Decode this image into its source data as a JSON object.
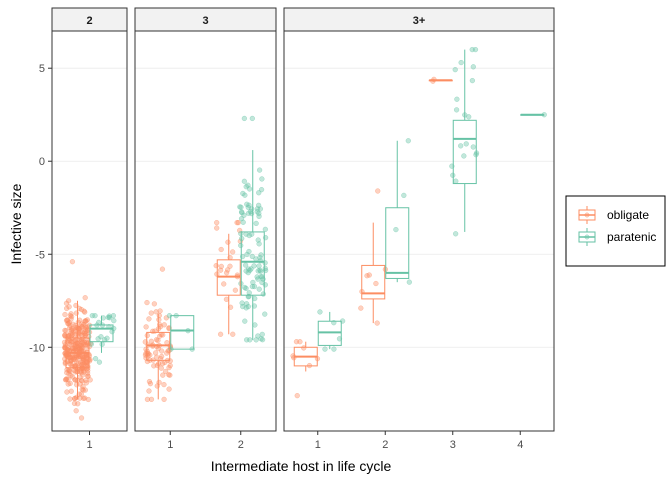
{
  "chart_data": {
    "type": "boxplot-jitter",
    "xlabel": "Intermediate host in life cycle",
    "ylabel": "Infective size",
    "ylim": [
      -14.5,
      7
    ],
    "yticks": [
      -10,
      -5,
      0,
      5
    ],
    "grid": true,
    "legend": {
      "position": "right",
      "entries": [
        {
          "name": "obligate",
          "color": "#FC8D62"
        },
        {
          "name": "paratenic",
          "color": "#66C2A5"
        }
      ]
    },
    "panels": [
      {
        "label": "2",
        "categories": [
          "1"
        ],
        "boxes": [
          {
            "category": "1",
            "group": "obligate",
            "q1": -11.1,
            "median": -10.3,
            "q3": -9.5,
            "lo": -12.8,
            "hi": -7.5,
            "n": 300,
            "pmin": -13.8,
            "pmax": -5.4
          },
          {
            "category": "1",
            "group": "paratenic",
            "q1": -9.7,
            "median": -9.0,
            "q3": -8.8,
            "lo": -10.3,
            "hi": -8.3,
            "n": 22,
            "pmin": -10.8,
            "pmax": -8.3
          }
        ]
      },
      {
        "label": "3",
        "categories": [
          "1",
          "2"
        ],
        "boxes": [
          {
            "category": "1",
            "group": "obligate",
            "q1": -10.7,
            "median": -9.9,
            "q3": -9.2,
            "lo": -12.8,
            "hi": -8.2,
            "n": 80,
            "pmin": -12.8,
            "pmax": -5.8
          },
          {
            "category": "1",
            "group": "paratenic",
            "q1": -10.1,
            "median": -9.1,
            "q3": -8.3,
            "lo": -10.1,
            "hi": -8.3,
            "n": 5,
            "pmin": -10.1,
            "pmax": -8.3
          },
          {
            "category": "2",
            "group": "obligate",
            "q1": -7.2,
            "median": -6.2,
            "q3": -5.3,
            "lo": -9.3,
            "hi": -3.9,
            "n": 25,
            "pmin": -9.3,
            "pmax": -3.3
          },
          {
            "category": "2",
            "group": "paratenic",
            "q1": -7.2,
            "median": -5.4,
            "q3": -3.8,
            "lo": -9.6,
            "hi": 0.6,
            "n": 100,
            "pmin": -9.6,
            "pmax": 2.3
          }
        ]
      },
      {
        "label": "3+",
        "categories": [
          "1",
          "2",
          "3",
          "4"
        ],
        "boxes": [
          {
            "category": "1",
            "group": "obligate",
            "q1": -11.0,
            "median": -10.5,
            "q3": -10.0,
            "lo": -11.3,
            "hi": -9.7,
            "n": 8,
            "pmin": -12.6,
            "pmax": -9.7
          },
          {
            "category": "1",
            "group": "paratenic",
            "q1": -9.9,
            "median": -9.2,
            "q3": -8.6,
            "lo": -10.1,
            "hi": -8.1,
            "n": 6,
            "pmin": -10.1,
            "pmax": -8.1
          },
          {
            "category": "2",
            "group": "obligate",
            "q1": -7.4,
            "median": -7.1,
            "q3": -5.6,
            "lo": -8.7,
            "hi": -3.3,
            "n": 8,
            "pmin": -8.7,
            "pmax": -1.6
          },
          {
            "category": "2",
            "group": "paratenic",
            "q1": -6.3,
            "median": -6.0,
            "q3": -2.5,
            "lo": -6.5,
            "hi": 1.1,
            "n": 4,
            "pmin": -6.5,
            "pmax": 1.1
          },
          {
            "category": "3",
            "group": "obligate",
            "q1": 4.35,
            "median": 4.35,
            "q3": 4.35,
            "lo": 4.35,
            "hi": 4.35,
            "n": 2,
            "pmin": 4.3,
            "pmax": 4.4
          },
          {
            "category": "3",
            "group": "paratenic",
            "q1": -1.2,
            "median": 1.2,
            "q3": 2.2,
            "lo": -3.8,
            "hi": 6.0,
            "n": 20,
            "pmin": -3.9,
            "pmax": 6.0
          },
          {
            "category": "4",
            "group": "paratenic",
            "q1": 2.5,
            "median": 2.5,
            "q3": 2.5,
            "lo": 2.5,
            "hi": 2.5,
            "n": 1,
            "pmin": 2.5,
            "pmax": 2.5
          }
        ]
      }
    ]
  }
}
